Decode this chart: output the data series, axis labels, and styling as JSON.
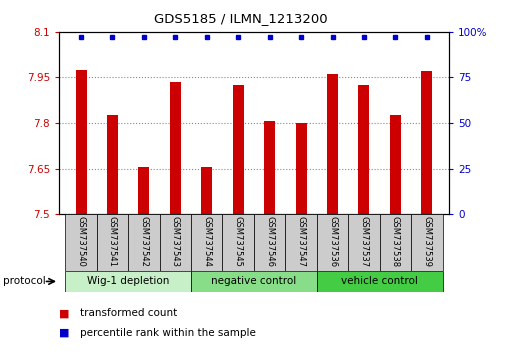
{
  "title": "GDS5185 / ILMN_1213200",
  "samples": [
    "GSM737540",
    "GSM737541",
    "GSM737542",
    "GSM737543",
    "GSM737544",
    "GSM737545",
    "GSM737546",
    "GSM737547",
    "GSM737536",
    "GSM737537",
    "GSM737538",
    "GSM737539"
  ],
  "bar_values": [
    7.975,
    7.825,
    7.655,
    7.935,
    7.655,
    7.925,
    7.805,
    7.8,
    7.96,
    7.925,
    7.825,
    7.97
  ],
  "percentile_values": [
    97,
    97,
    97,
    97,
    97,
    97,
    97,
    97,
    97,
    97,
    97,
    97
  ],
  "bar_color": "#cc0000",
  "percentile_color": "#0000cc",
  "ylim_left": [
    7.5,
    8.1
  ],
  "ylim_right": [
    0,
    100
  ],
  "yticks_left": [
    7.5,
    7.65,
    7.8,
    7.95,
    8.1
  ],
  "yticks_right": [
    0,
    25,
    50,
    75,
    100
  ],
  "ytick_labels_left": [
    "7.5",
    "7.65",
    "7.8",
    "7.95",
    "8.1"
  ],
  "ytick_labels_right": [
    "0",
    "25",
    "50",
    "75",
    "100%"
  ],
  "groups": [
    {
      "label": "Wig-1 depletion",
      "start": 0,
      "end": 4,
      "color": "#c8f0c8"
    },
    {
      "label": "negative control",
      "start": 4,
      "end": 8,
      "color": "#88dd88"
    },
    {
      "label": "vehicle control",
      "start": 8,
      "end": 12,
      "color": "#44cc44"
    }
  ],
  "protocol_label": "protocol",
  "legend_items": [
    {
      "label": "transformed count",
      "color": "#cc0000"
    },
    {
      "label": "percentile rank within the sample",
      "color": "#0000cc"
    }
  ],
  "bar_width": 0.35,
  "grid_color": "#888888",
  "bg_plot": "#ffffff",
  "tick_area_bg": "#cccccc",
  "fig_width": 5.13,
  "fig_height": 3.54,
  "dpi": 100
}
